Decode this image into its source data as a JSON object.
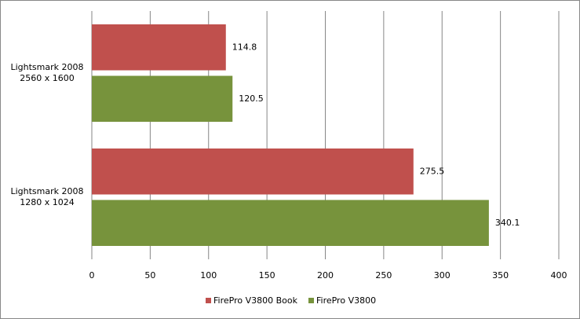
{
  "chart_data": {
    "type": "bar",
    "orientation": "horizontal",
    "categories": [
      "Lightsmark 2008\n2560 x 1600",
      "Lightsmark 2008\n1280 x 1024"
    ],
    "series": [
      {
        "name": "FirePro V3800 Book",
        "color": "#c0504d",
        "values": [
          114.8,
          275.5
        ]
      },
      {
        "name": "FirePro V3800",
        "color": "#77933c",
        "values": [
          120.5,
          340.1
        ]
      }
    ],
    "xlim": [
      0,
      400
    ],
    "xticks": [
      0,
      50,
      100,
      150,
      200,
      250,
      300,
      350,
      400
    ],
    "grid": true,
    "legend": "bottom"
  }
}
